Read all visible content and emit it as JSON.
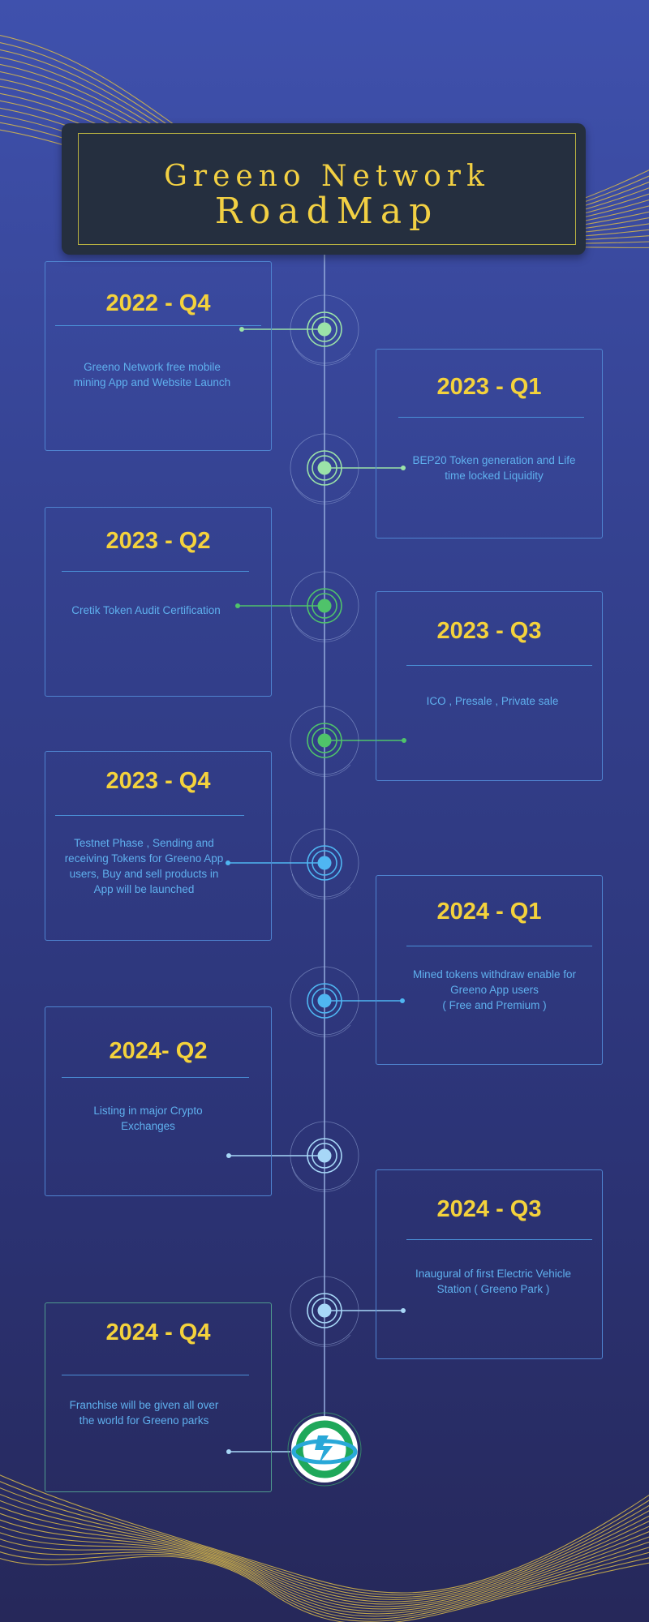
{
  "header": {
    "line1": "Greeno Network",
    "line2": "RoadMap"
  },
  "milestones": [
    {
      "title": "2022 - Q4",
      "text": "Greeno Network free mobile mining App and Website Launch"
    },
    {
      "title": "2023 - Q1",
      "text": "BEP20 Token generation and Life time locked Liquidity"
    },
    {
      "title": "2023 - Q2",
      "text": "Cretik Token Audit Certification"
    },
    {
      "title": "2023 - Q3",
      "text": "ICO , Presale , Private sale"
    },
    {
      "title": "2023 - Q4",
      "text": "Testnet Phase , Sending and receiving Tokens for Greeno App users, Buy and sell products in App will be launched"
    },
    {
      "title": "2024 - Q1",
      "text": "Mined tokens withdraw enable for Greeno App users\n( Free and Premium )"
    },
    {
      "title": "2024- Q2",
      "text": "Listing in major Crypto Exchanges"
    },
    {
      "title": "2024 - Q3",
      "text": "Inaugural of first Electric Vehicle Station ( Greeno Park )"
    },
    {
      "title": "2024 - Q4",
      "text": "Franchise will be given all over the world for Greeno parks"
    }
  ],
  "colors": {
    "accent": "#f4d23c",
    "text": "#5fb0ee",
    "node_light_green": "#9be3a8",
    "node_green": "#4fc36a",
    "node_blue": "#4fb6f2",
    "node_light_blue": "#a7d7f7"
  }
}
